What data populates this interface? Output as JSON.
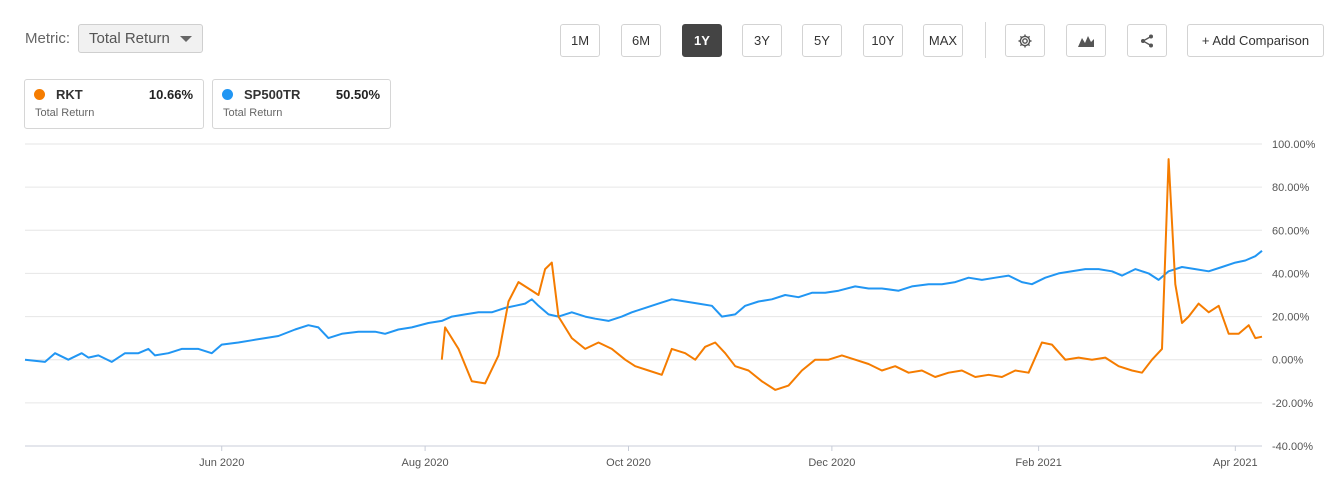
{
  "metric": {
    "label": "Metric:",
    "selected": "Total Return"
  },
  "periods": [
    {
      "label": "1M",
      "active": false
    },
    {
      "label": "6M",
      "active": false
    },
    {
      "label": "1Y",
      "active": true
    },
    {
      "label": "3Y",
      "active": false
    },
    {
      "label": "5Y",
      "active": false
    },
    {
      "label": "10Y",
      "active": false
    },
    {
      "label": "MAX",
      "active": false
    }
  ],
  "toolbar": {
    "add_comparison_label": "+ Add Comparison",
    "icons": [
      "gear-icon",
      "chart-type-icon",
      "share-icon"
    ]
  },
  "legend": [
    {
      "name": "RKT",
      "value": "10.66%",
      "sub": "Total Return",
      "color": "#f57c00"
    },
    {
      "name": "SP500TR",
      "value": "50.50%",
      "sub": "Total Return",
      "color": "#2196f3"
    }
  ],
  "chart_data": {
    "type": "line",
    "title": "",
    "xlabel": "",
    "ylabel": "",
    "x_range": [
      "2020-04-03",
      "2021-04-09"
    ],
    "ylim": [
      -40,
      100
    ],
    "yticks": [
      100,
      80,
      60,
      40,
      20,
      0,
      -20,
      -40
    ],
    "ytick_labels": [
      "100.00%",
      "80.00%",
      "60.00%",
      "40.00%",
      "20.00%",
      "0.00%",
      "-20.00%",
      "-40.00%"
    ],
    "xticks": [
      "2020-06-01",
      "2020-08-01",
      "2020-10-01",
      "2020-12-01",
      "2021-02-01",
      "2021-04-01"
    ],
    "xtick_labels": [
      "Jun 2020",
      "Aug 2020",
      "Oct 2020",
      "Dec 2020",
      "Feb 2021",
      "Apr 2021"
    ],
    "grid": true,
    "legend_position": "top-left",
    "series": [
      {
        "name": "SP500TR",
        "color": "#2196f3",
        "points": [
          [
            "2020-04-03",
            0
          ],
          [
            "2020-04-09",
            -1
          ],
          [
            "2020-04-12",
            3
          ],
          [
            "2020-04-16",
            0
          ],
          [
            "2020-04-20",
            3
          ],
          [
            "2020-04-22",
            1
          ],
          [
            "2020-04-25",
            2
          ],
          [
            "2020-04-29",
            -1
          ],
          [
            "2020-05-03",
            3
          ],
          [
            "2020-05-07",
            3
          ],
          [
            "2020-05-10",
            5
          ],
          [
            "2020-05-12",
            2
          ],
          [
            "2020-05-16",
            3
          ],
          [
            "2020-05-20",
            5
          ],
          [
            "2020-05-25",
            5
          ],
          [
            "2020-05-29",
            3
          ],
          [
            "2020-06-01",
            7
          ],
          [
            "2020-06-06",
            8
          ],
          [
            "2020-06-10",
            9
          ],
          [
            "2020-06-14",
            10
          ],
          [
            "2020-06-18",
            11
          ],
          [
            "2020-06-23",
            14
          ],
          [
            "2020-06-27",
            16
          ],
          [
            "2020-06-30",
            15
          ],
          [
            "2020-07-03",
            10
          ],
          [
            "2020-07-07",
            12
          ],
          [
            "2020-07-12",
            13
          ],
          [
            "2020-07-17",
            13
          ],
          [
            "2020-07-20",
            12
          ],
          [
            "2020-07-24",
            14
          ],
          [
            "2020-07-28",
            15
          ],
          [
            "2020-08-02",
            17
          ],
          [
            "2020-08-06",
            18
          ],
          [
            "2020-08-09",
            20
          ],
          [
            "2020-08-13",
            21
          ],
          [
            "2020-08-17",
            22
          ],
          [
            "2020-08-21",
            22
          ],
          [
            "2020-08-25",
            24
          ],
          [
            "2020-08-28",
            25
          ],
          [
            "2020-08-31",
            26
          ],
          [
            "2020-09-02",
            28
          ],
          [
            "2020-09-04",
            25
          ],
          [
            "2020-09-07",
            21
          ],
          [
            "2020-09-10",
            20
          ],
          [
            "2020-09-14",
            22
          ],
          [
            "2020-09-18",
            20
          ],
          [
            "2020-09-21",
            19
          ],
          [
            "2020-09-25",
            18
          ],
          [
            "2020-09-29",
            20
          ],
          [
            "2020-10-02",
            22
          ],
          [
            "2020-10-06",
            24
          ],
          [
            "2020-10-10",
            26
          ],
          [
            "2020-10-14",
            28
          ],
          [
            "2020-10-18",
            27
          ],
          [
            "2020-10-22",
            26
          ],
          [
            "2020-10-26",
            25
          ],
          [
            "2020-10-29",
            20
          ],
          [
            "2020-11-02",
            21
          ],
          [
            "2020-11-05",
            25
          ],
          [
            "2020-11-09",
            27
          ],
          [
            "2020-11-13",
            28
          ],
          [
            "2020-11-17",
            30
          ],
          [
            "2020-11-21",
            29
          ],
          [
            "2020-11-25",
            31
          ],
          [
            "2020-11-29",
            31
          ],
          [
            "2020-12-03",
            32
          ],
          [
            "2020-12-08",
            34
          ],
          [
            "2020-12-12",
            33
          ],
          [
            "2020-12-16",
            33
          ],
          [
            "2020-12-21",
            32
          ],
          [
            "2020-12-25",
            34
          ],
          [
            "2020-12-30",
            35
          ],
          [
            "2021-01-03",
            35
          ],
          [
            "2021-01-07",
            36
          ],
          [
            "2021-01-11",
            38
          ],
          [
            "2021-01-15",
            37
          ],
          [
            "2021-01-19",
            38
          ],
          [
            "2021-01-23",
            39
          ],
          [
            "2021-01-27",
            36
          ],
          [
            "2021-01-30",
            35
          ],
          [
            "2021-02-03",
            38
          ],
          [
            "2021-02-07",
            40
          ],
          [
            "2021-02-11",
            41
          ],
          [
            "2021-02-15",
            42
          ],
          [
            "2021-02-19",
            42
          ],
          [
            "2021-02-23",
            41
          ],
          [
            "2021-02-26",
            39
          ],
          [
            "2021-03-02",
            42
          ],
          [
            "2021-03-06",
            40
          ],
          [
            "2021-03-09",
            37
          ],
          [
            "2021-03-12",
            41
          ],
          [
            "2021-03-16",
            43
          ],
          [
            "2021-03-20",
            42
          ],
          [
            "2021-03-24",
            41
          ],
          [
            "2021-03-28",
            43
          ],
          [
            "2021-04-01",
            45
          ],
          [
            "2021-04-04",
            46
          ],
          [
            "2021-04-07",
            48
          ],
          [
            "2021-04-09",
            50.5
          ]
        ]
      },
      {
        "name": "RKT",
        "color": "#f57c00",
        "points": [
          [
            "2020-08-06",
            0
          ],
          [
            "2020-08-07",
            15
          ],
          [
            "2020-08-11",
            5
          ],
          [
            "2020-08-15",
            -10
          ],
          [
            "2020-08-19",
            -11
          ],
          [
            "2020-08-23",
            2
          ],
          [
            "2020-08-26",
            27
          ],
          [
            "2020-08-29",
            36
          ],
          [
            "2020-09-01",
            33
          ],
          [
            "2020-09-04",
            30
          ],
          [
            "2020-09-06",
            42
          ],
          [
            "2020-09-08",
            45
          ],
          [
            "2020-09-10",
            20
          ],
          [
            "2020-09-14",
            10
          ],
          [
            "2020-09-18",
            5
          ],
          [
            "2020-09-22",
            8
          ],
          [
            "2020-09-26",
            5
          ],
          [
            "2020-09-30",
            0
          ],
          [
            "2020-10-03",
            -3
          ],
          [
            "2020-10-07",
            -5
          ],
          [
            "2020-10-11",
            -7
          ],
          [
            "2020-10-14",
            5
          ],
          [
            "2020-10-18",
            3
          ],
          [
            "2020-10-21",
            0
          ],
          [
            "2020-10-24",
            6
          ],
          [
            "2020-10-27",
            8
          ],
          [
            "2020-10-30",
            3
          ],
          [
            "2020-11-02",
            -3
          ],
          [
            "2020-11-06",
            -5
          ],
          [
            "2020-11-10",
            -10
          ],
          [
            "2020-11-14",
            -14
          ],
          [
            "2020-11-18",
            -12
          ],
          [
            "2020-11-22",
            -5
          ],
          [
            "2020-11-26",
            0
          ],
          [
            "2020-11-30",
            0
          ],
          [
            "2020-12-04",
            2
          ],
          [
            "2020-12-08",
            0
          ],
          [
            "2020-12-12",
            -2
          ],
          [
            "2020-12-16",
            -5
          ],
          [
            "2020-12-20",
            -3
          ],
          [
            "2020-12-24",
            -6
          ],
          [
            "2020-12-28",
            -5
          ],
          [
            "2021-01-01",
            -8
          ],
          [
            "2021-01-05",
            -6
          ],
          [
            "2021-01-09",
            -5
          ],
          [
            "2021-01-13",
            -8
          ],
          [
            "2021-01-17",
            -7
          ],
          [
            "2021-01-21",
            -8
          ],
          [
            "2021-01-25",
            -5
          ],
          [
            "2021-01-29",
            -6
          ],
          [
            "2021-02-02",
            8
          ],
          [
            "2021-02-05",
            7
          ],
          [
            "2021-02-09",
            0
          ],
          [
            "2021-02-13",
            1
          ],
          [
            "2021-02-17",
            0
          ],
          [
            "2021-02-21",
            1
          ],
          [
            "2021-02-25",
            -3
          ],
          [
            "2021-03-01",
            -5
          ],
          [
            "2021-03-04",
            -6
          ],
          [
            "2021-03-07",
            0
          ],
          [
            "2021-03-10",
            5
          ],
          [
            "2021-03-12",
            93
          ],
          [
            "2021-03-14",
            35
          ],
          [
            "2021-03-16",
            17
          ],
          [
            "2021-03-18",
            20
          ],
          [
            "2021-03-21",
            26
          ],
          [
            "2021-03-24",
            22
          ],
          [
            "2021-03-27",
            25
          ],
          [
            "2021-03-30",
            12
          ],
          [
            "2021-04-02",
            12
          ],
          [
            "2021-04-05",
            16
          ],
          [
            "2021-04-07",
            10
          ],
          [
            "2021-04-09",
            10.66
          ]
        ]
      }
    ]
  }
}
